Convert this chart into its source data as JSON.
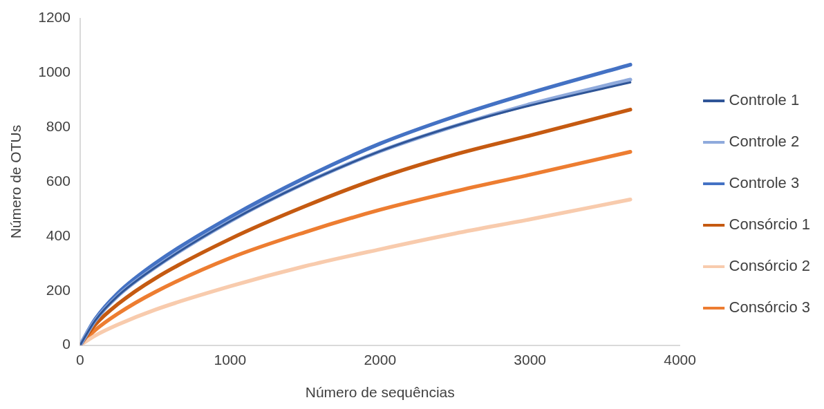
{
  "chart_data": {
    "type": "line",
    "xlabel": "Número de sequências",
    "ylabel": "Número de OTUs",
    "x": [
      0,
      100,
      250,
      500,
      1000,
      1500,
      2000,
      2500,
      3000,
      3669
    ],
    "series": [
      {
        "name": "Controle 1",
        "color": "#2f5597",
        "values": [
          0,
          90,
          180,
          285,
          455,
          595,
          712,
          805,
          880,
          965
        ]
      },
      {
        "name": "Controle 2",
        "color": "#8faadc",
        "values": [
          0,
          90,
          180,
          285,
          455,
          595,
          712,
          805,
          885,
          975
        ]
      },
      {
        "name": "Controle 3",
        "color": "#4472c4",
        "values": [
          0,
          95,
          190,
          300,
          470,
          615,
          740,
          840,
          926,
          1030
        ]
      },
      {
        "name": "Consórcio 1",
        "color": "#c55a11",
        "values": [
          0,
          75,
          150,
          245,
          390,
          510,
          615,
          700,
          770,
          865
        ]
      },
      {
        "name": "Consórcio 2",
        "color": "#f8cbad",
        "values": [
          0,
          35,
          75,
          130,
          216,
          290,
          352,
          410,
          462,
          535
        ]
      },
      {
        "name": "Consórcio 3",
        "color": "#ed7d31",
        "values": [
          0,
          55,
          115,
          195,
          320,
          415,
          497,
          565,
          626,
          710
        ]
      }
    ],
    "xlim": [
      0,
      4000
    ],
    "xticks": [
      0,
      1000,
      2000,
      3000,
      4000
    ],
    "ylim": [
      0,
      1200
    ],
    "yticks": [
      0,
      200,
      400,
      600,
      800,
      1000,
      1200
    ],
    "grid": false,
    "legend": "right"
  }
}
